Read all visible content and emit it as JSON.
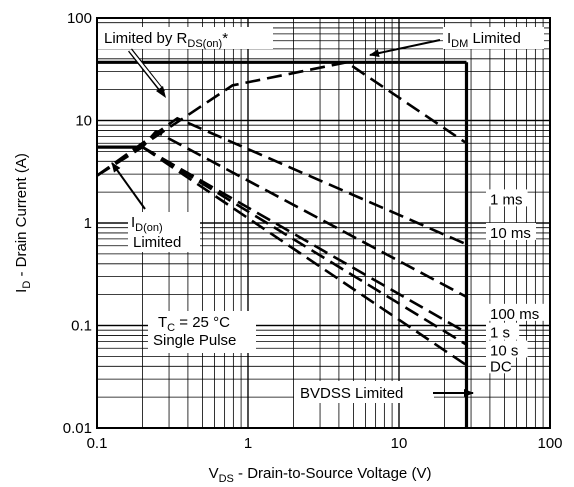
{
  "chart_data": {
    "type": "line",
    "title": "",
    "xlabel": {
      "main": "V",
      "sub": "DS",
      "rest": " - Drain-to-Source Voltage (V)"
    },
    "ylabel": {
      "main": "I",
      "sub": "D",
      "rest": " - Drain Current (A)"
    },
    "x_scale": "log",
    "y_scale": "log",
    "xlim": [
      0.1,
      100
    ],
    "ylim": [
      0.01,
      100
    ],
    "x_ticks": [
      {
        "value": 0.1,
        "label": "0.1"
      },
      {
        "value": 1,
        "label": "1"
      },
      {
        "value": 10,
        "label": "10"
      },
      {
        "value": 100,
        "label": "100"
      }
    ],
    "y_ticks": [
      {
        "value": 0.01,
        "label": "0.01"
      },
      {
        "value": 0.1,
        "label": "0.1"
      },
      {
        "value": 1,
        "label": "1"
      },
      {
        "value": 10,
        "label": "10"
      },
      {
        "value": 100,
        "label": "100"
      }
    ],
    "grid": true,
    "limit_lines": [
      {
        "name": "IDM Limited",
        "points": [
          [
            0.1,
            37
          ],
          [
            28,
            37
          ]
        ]
      },
      {
        "name": "BVDSS Limited",
        "points": [
          [
            28,
            0.01
          ],
          [
            28,
            37
          ]
        ]
      },
      {
        "name": "ID(on) Limited",
        "points": [
          [
            0.1,
            5.5
          ],
          [
            0.2,
            5.5
          ]
        ]
      }
    ],
    "series": [
      {
        "name": "1 ms",
        "points": [
          [
            0.1,
            2.9
          ],
          [
            0.79,
            22
          ],
          [
            4.5,
            37
          ],
          [
            28,
            6.0
          ]
        ]
      },
      {
        "name": "10 ms",
        "points": [
          [
            0.1,
            2.9
          ],
          [
            0.34,
            10.5
          ],
          [
            28,
            0.62
          ]
        ]
      },
      {
        "name": "100 ms",
        "points": [
          [
            0.1,
            2.9
          ],
          [
            0.2,
            5.5
          ],
          [
            0.245,
            7.8
          ],
          [
            28,
            0.19
          ]
        ]
      },
      {
        "name": "1 s",
        "points": [
          [
            0.2,
            5.5
          ],
          [
            28,
            0.085
          ]
        ]
      },
      {
        "name": "10 s",
        "points": [
          [
            0.2,
            5.5
          ],
          [
            28,
            0.065
          ]
        ]
      },
      {
        "name": "DC",
        "points": [
          [
            0.2,
            5.5
          ],
          [
            28,
            0.041
          ]
        ]
      }
    ],
    "annotations": {
      "rds_limit": {
        "main": "Limited by R",
        "sub": "DS(on)",
        "rest": "*"
      },
      "idm_limit": {
        "main": "I",
        "sub": "DM",
        "rest": " Limited"
      },
      "idon_limit": {
        "main": "I",
        "sub": "D(on)",
        "line2": "Limited"
      },
      "tc": {
        "main": "T",
        "sub": "C",
        "rest": " = 25 °C"
      },
      "pulse": "Single Pulse",
      "bvdss": "BVDSS Limited"
    }
  }
}
